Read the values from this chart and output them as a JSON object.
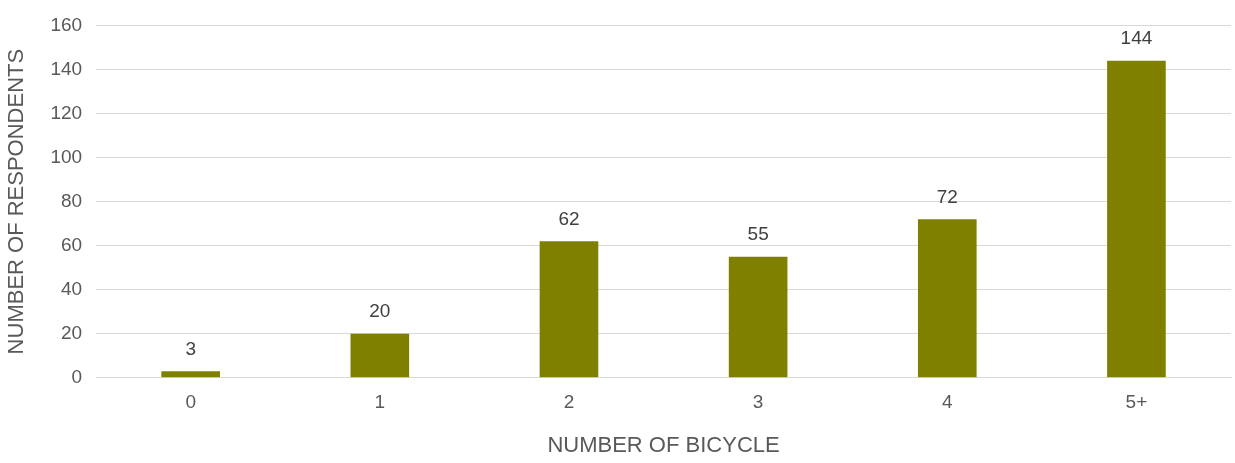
{
  "chart_data": {
    "type": "bar",
    "xlabel": "NUMBER OF BICYCLE",
    "ylabel": "NUMBER OF RESPONDENTS",
    "categories": [
      "0",
      "1",
      "2",
      "3",
      "4",
      "5+"
    ],
    "values": [
      3,
      20,
      62,
      55,
      72,
      144
    ],
    "color": "#808000",
    "ylim": [
      0,
      160
    ],
    "yticks": [
      0,
      20,
      40,
      60,
      80,
      100,
      120,
      140,
      160
    ],
    "grid": "y",
    "data_labels": true,
    "legend": false
  }
}
